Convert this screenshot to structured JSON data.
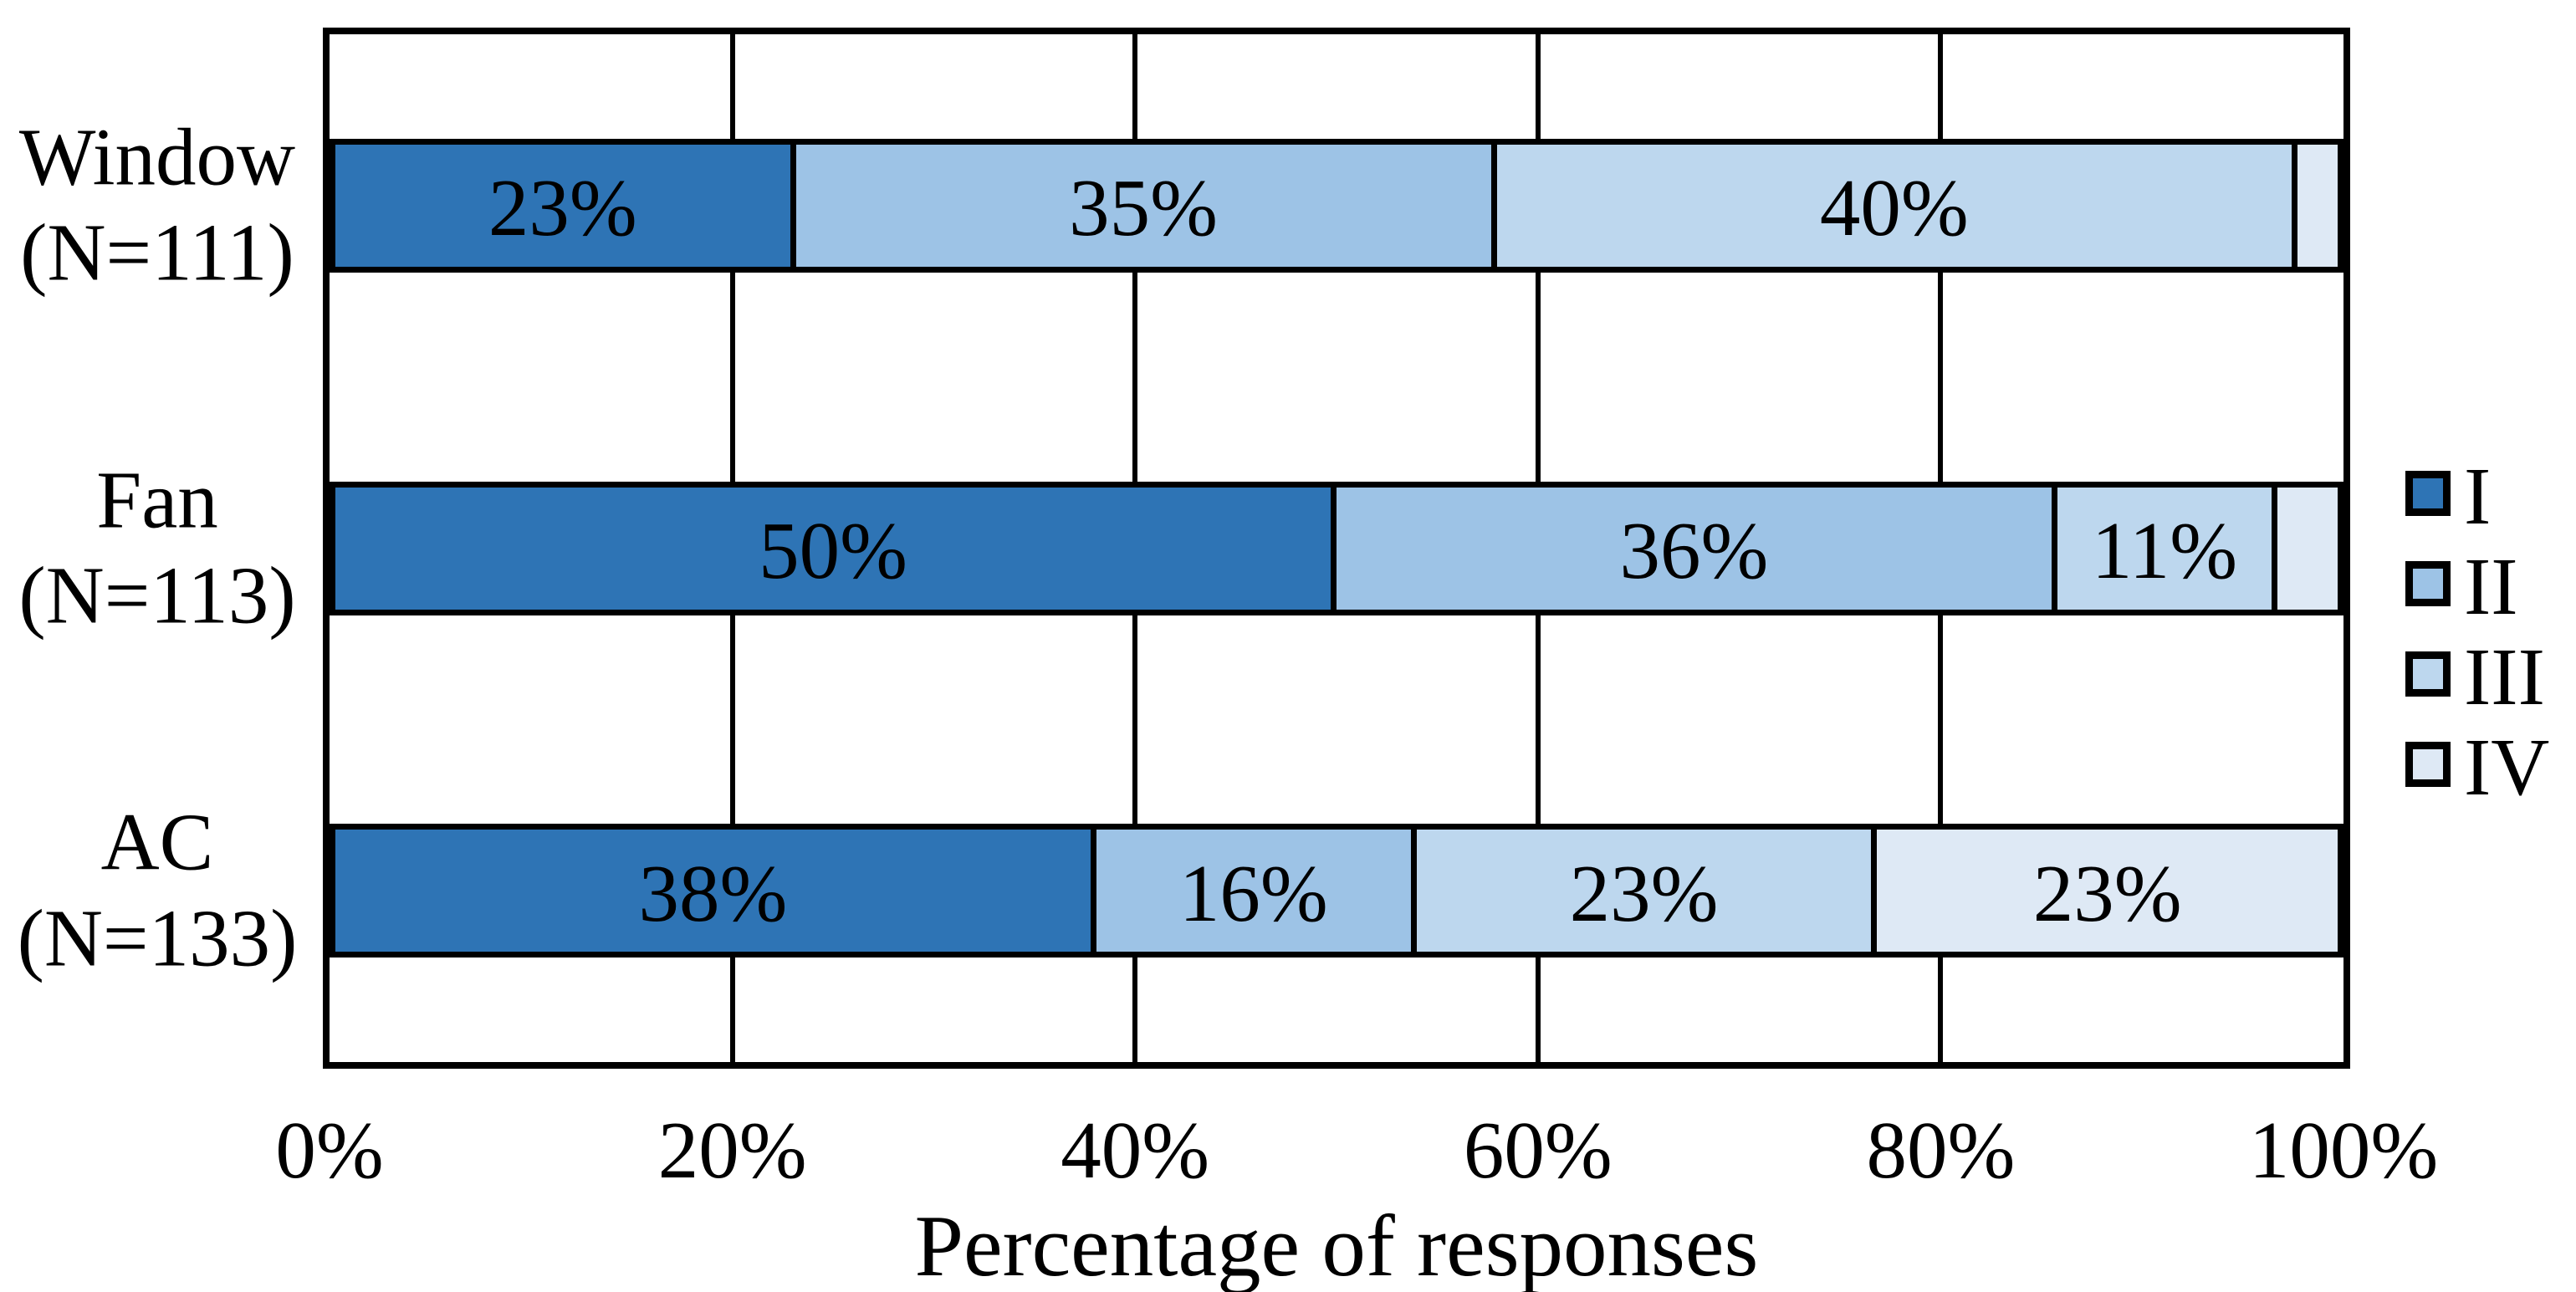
{
  "chart_data": {
    "type": "bar",
    "orientation": "horizontal",
    "stacked": true,
    "xlabel": "Percentage of responses",
    "xlim": [
      0,
      100
    ],
    "x_ticks": [
      "0%",
      "20%",
      "40%",
      "60%",
      "80%",
      "100%"
    ],
    "grid": "vertical-lines-at-20-percent-steps",
    "legend_position": "right",
    "categories": [
      "Window (N=111)",
      "Fan (N=113)",
      "AC (N=133)"
    ],
    "series": [
      {
        "name": "I",
        "color": "#2E74B5",
        "values": [
          23,
          50,
          38
        ]
      },
      {
        "name": "II",
        "color": "#9DC3E6",
        "values": [
          35,
          36,
          16
        ]
      },
      {
        "name": "III",
        "color": "#BDD7EE",
        "values": [
          40,
          11,
          23
        ]
      },
      {
        "name": "IV",
        "color": "#DEE9F5",
        "values": [
          2,
          3,
          23
        ]
      }
    ],
    "rows": [
      {
        "label_lines": [
          "Window",
          "(N=111)"
        ],
        "segments": [
          {
            "series": "I",
            "value": 23,
            "label": "23%"
          },
          {
            "series": "II",
            "value": 35,
            "label": "35%"
          },
          {
            "series": "III",
            "value": 40,
            "label": "40%"
          },
          {
            "series": "IV",
            "value": 2,
            "label": ""
          }
        ]
      },
      {
        "label_lines": [
          "Fan",
          "(N=113)"
        ],
        "segments": [
          {
            "series": "I",
            "value": 50,
            "label": "50%"
          },
          {
            "series": "II",
            "value": 36,
            "label": "36%"
          },
          {
            "series": "III",
            "value": 11,
            "label": "11%"
          },
          {
            "series": "IV",
            "value": 3,
            "label": ""
          }
        ]
      },
      {
        "label_lines": [
          "AC",
          "(N=133)"
        ],
        "segments": [
          {
            "series": "I",
            "value": 38,
            "label": "38%"
          },
          {
            "series": "II",
            "value": 16,
            "label": "16%"
          },
          {
            "series": "III",
            "value": 23,
            "label": "23%"
          },
          {
            "series": "IV",
            "value": 23,
            "label": "23%"
          }
        ]
      }
    ],
    "legend_entries": [
      {
        "label": "I",
        "color": "#2E74B5"
      },
      {
        "label": "II",
        "color": "#9DC3E6"
      },
      {
        "label": "III",
        "color": "#BDD7EE"
      },
      {
        "label": "IV",
        "color": "#DEE9F5"
      }
    ]
  },
  "colors": {
    "border": "#000000",
    "background": "#ffffff"
  }
}
